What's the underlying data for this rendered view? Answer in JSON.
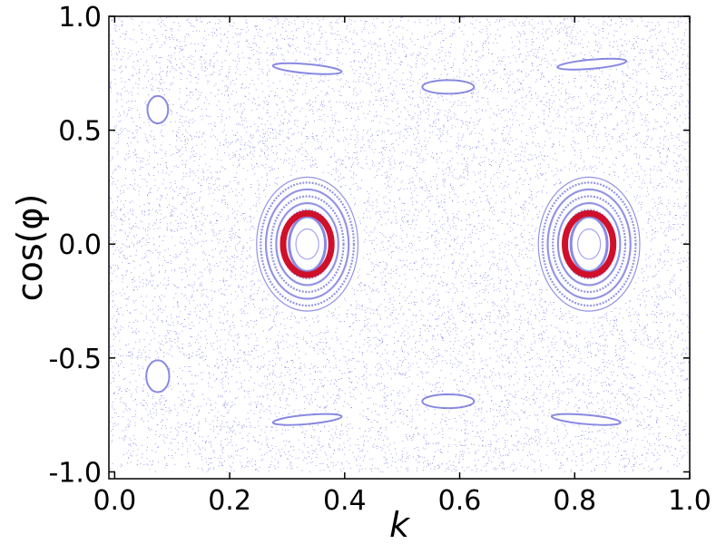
{
  "chart_data": {
    "type": "scatter",
    "title": "",
    "xlabel": "k",
    "ylabel": "cos(φ)",
    "xlim": [
      -0.01,
      1.0
    ],
    "ylim": [
      -1.03,
      1.0
    ],
    "grid": false,
    "x_ticks": [
      0.0,
      0.2,
      0.4,
      0.6,
      0.8,
      1.0
    ],
    "x_tick_labels": [
      "0.0",
      "0.2",
      "0.4",
      "0.6",
      "0.8",
      "1.0"
    ],
    "y_ticks": [
      -1.0,
      -0.5,
      0.0,
      0.5,
      1.0
    ],
    "y_tick_labels": [
      "-1.0",
      "-0.5",
      "0.0",
      "0.5",
      "1.0"
    ],
    "colors": {
      "chaotic_sea": "#2b2bd9",
      "regular_orbits": "#3a3ad0",
      "highlighted_orbit": "#d0102a",
      "axes": "#000000"
    },
    "chaotic_region": {
      "x_range": [
        -0.01,
        1.0
      ],
      "y_range": [
        -1.0,
        1.0
      ],
      "point_count": 12000
    },
    "islands": [
      {
        "kind": "elliptic_center",
        "center": [
          0.335,
          0.0
        ],
        "half_width": 0.09,
        "half_height": 0.3,
        "rings": [
          0.98,
          0.9,
          0.8,
          0.7,
          0.6,
          0.5
        ]
      },
      {
        "kind": "elliptic_center",
        "center": [
          0.825,
          0.0
        ],
        "half_width": 0.09,
        "half_height": 0.3,
        "rings": [
          0.98,
          0.9,
          0.8,
          0.7,
          0.6,
          0.5
        ]
      },
      {
        "kind": "small_island",
        "center": [
          0.075,
          0.59
        ],
        "half_width": 0.018,
        "half_height": 0.06
      },
      {
        "kind": "small_island",
        "center": [
          0.075,
          -0.58
        ],
        "half_width": 0.02,
        "half_height": 0.07
      },
      {
        "kind": "elongated",
        "center": [
          0.335,
          0.77
        ],
        "half_width": 0.06,
        "half_height": 0.02,
        "tilt": 0.5
      },
      {
        "kind": "elongated",
        "center": [
          0.83,
          0.79
        ],
        "half_width": 0.06,
        "half_height": 0.02,
        "tilt": -0.5
      },
      {
        "kind": "elongated",
        "center": [
          0.335,
          -0.77
        ],
        "half_width": 0.06,
        "half_height": 0.02,
        "tilt": -0.5
      },
      {
        "kind": "elongated",
        "center": [
          0.82,
          -0.77
        ],
        "half_width": 0.06,
        "half_height": 0.02,
        "tilt": 0.5
      },
      {
        "kind": "lens",
        "center": [
          0.58,
          0.69
        ],
        "half_width": 0.045,
        "half_height": 0.03
      },
      {
        "kind": "lens",
        "center": [
          0.58,
          -0.69
        ],
        "half_width": 0.045,
        "half_height": 0.03
      }
    ],
    "highlighted_orbits": [
      {
        "center": [
          0.335,
          0.0
        ],
        "rx": 0.042,
        "ry": 0.135
      },
      {
        "center": [
          0.825,
          0.0
        ],
        "rx": 0.042,
        "ry": 0.135
      }
    ]
  }
}
